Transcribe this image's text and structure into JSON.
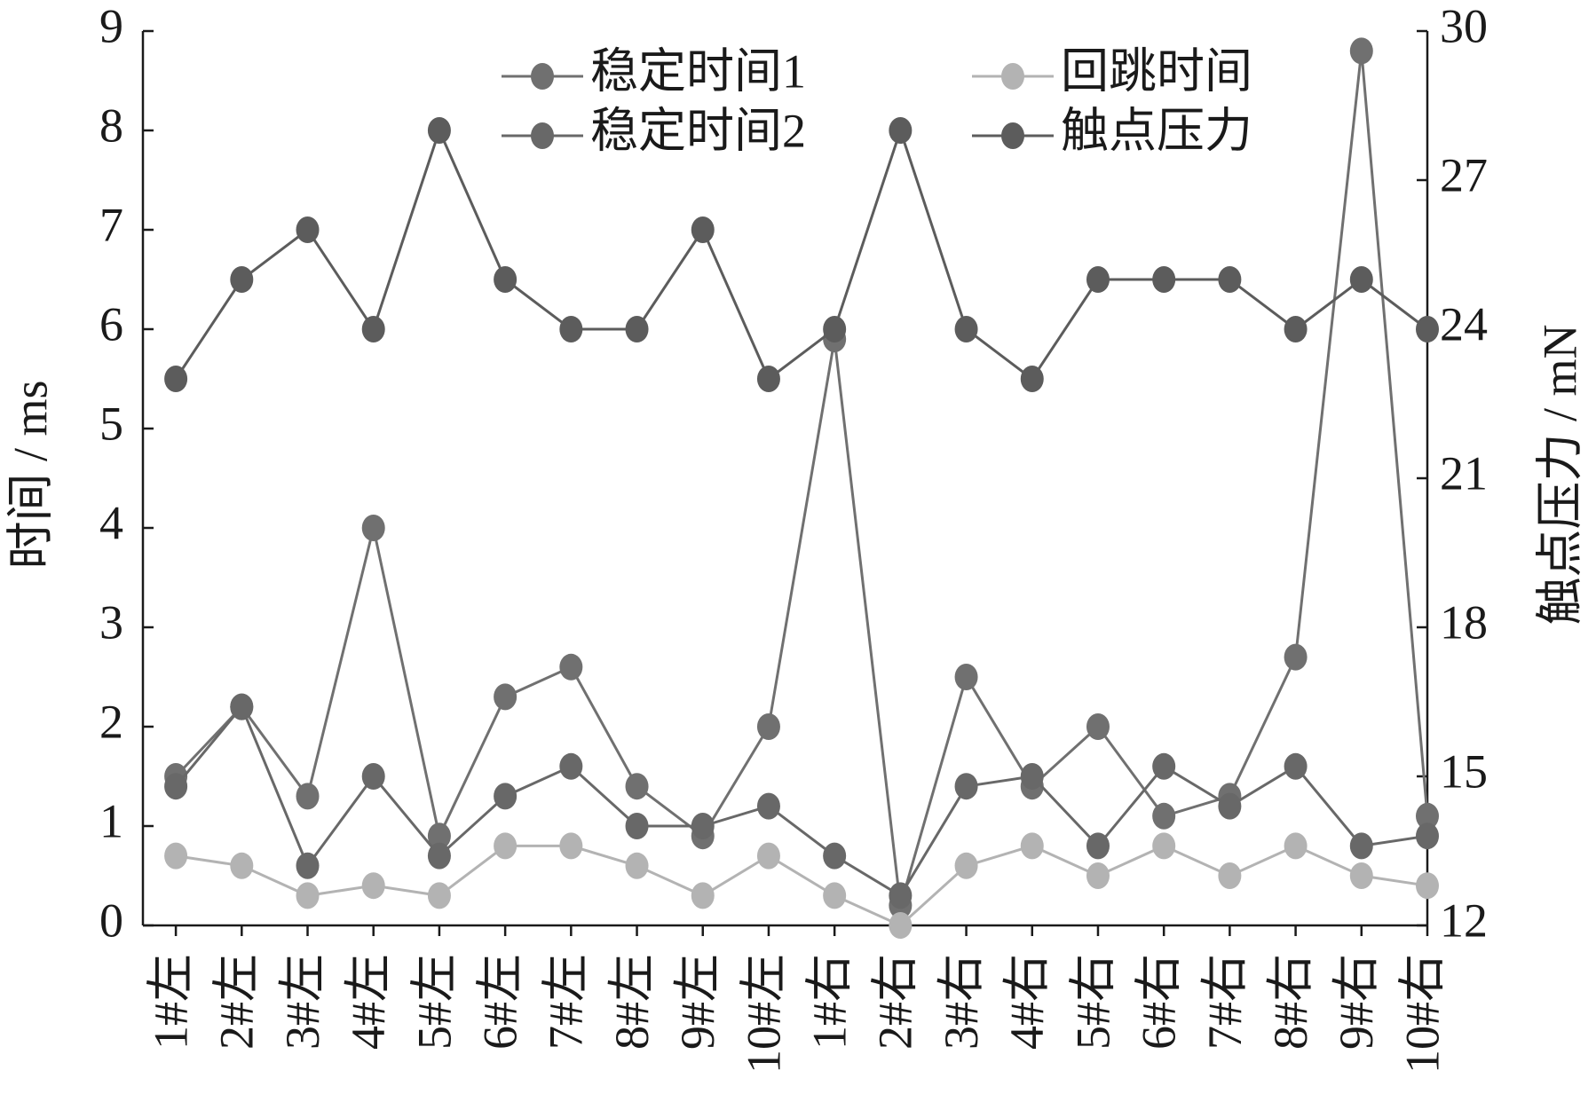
{
  "chart_data": {
    "type": "line",
    "categories": [
      "1#左",
      "2#左",
      "3#左",
      "4#左",
      "5#左",
      "6#左",
      "7#左",
      "8#左",
      "9#左",
      "10#左",
      "1#右",
      "2#右",
      "3#右",
      "4#右",
      "5#右",
      "6#右",
      "7#右",
      "8#右",
      "9#右",
      "10#右"
    ],
    "y_label": "时间 / ms",
    "y2_label": "触点压力 / mN",
    "ylim": [
      0,
      9
    ],
    "yticks": [
      0,
      1,
      2,
      3,
      4,
      5,
      6,
      7,
      8,
      9
    ],
    "y2lim": [
      12,
      30
    ],
    "y2ticks": [
      12,
      15,
      18,
      21,
      24,
      27,
      30
    ],
    "series": [
      {
        "name": "稳定时间1",
        "color": "#707070",
        "axis": "y",
        "values": [
          1.5,
          2.2,
          1.3,
          4.0,
          0.9,
          2.3,
          2.6,
          1.4,
          0.9,
          2.0,
          5.9,
          0.2,
          2.5,
          1.4,
          2.0,
          1.1,
          1.3,
          2.7,
          8.8,
          1.1
        ]
      },
      {
        "name": "稳定时间2",
        "color": "#686868",
        "axis": "y",
        "values": [
          1.4,
          2.2,
          0.6,
          1.5,
          0.7,
          1.3,
          1.6,
          1.0,
          1.0,
          1.2,
          0.7,
          0.3,
          1.4,
          1.5,
          0.8,
          1.6,
          1.2,
          1.6,
          0.8,
          0.9
        ]
      },
      {
        "name": "回跳时间",
        "color": "#b3b3b3",
        "axis": "y",
        "values": [
          0.7,
          0.6,
          0.3,
          0.4,
          0.3,
          0.8,
          0.8,
          0.6,
          0.3,
          0.7,
          0.3,
          0,
          0.6,
          0.8,
          0.5,
          0.8,
          0.5,
          0.8,
          0.5,
          0.4
        ]
      },
      {
        "name": "触点压力",
        "color": "#5c5c5c",
        "axis": "y2",
        "values": [
          23,
          25,
          26,
          24,
          28,
          25,
          24,
          24,
          26,
          23,
          24,
          28,
          24,
          23,
          25,
          25,
          25,
          24,
          25,
          24
        ]
      }
    ]
  }
}
